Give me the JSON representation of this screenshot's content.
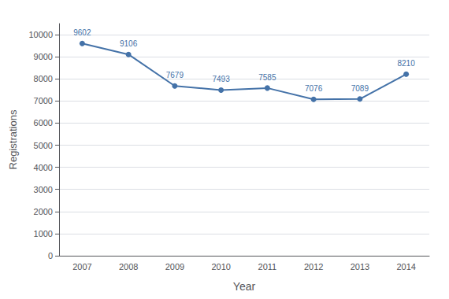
{
  "chart_data": {
    "type": "line",
    "xlabel": "Year",
    "ylabel": "Registrations",
    "categories": [
      "2007",
      "2008",
      "2009",
      "2010",
      "2011",
      "2012",
      "2013",
      "2014"
    ],
    "values": [
      9602,
      9106,
      7679,
      7493,
      7585,
      7076,
      7089,
      8210
    ],
    "color": "#4472a8",
    "marker": "circle",
    "ylim": [
      0,
      10500
    ],
    "yticks": [
      0,
      1000,
      2000,
      3000,
      4000,
      5000,
      6000,
      7000,
      8000,
      9000,
      10000
    ],
    "grid": true,
    "data_labels": true
  }
}
